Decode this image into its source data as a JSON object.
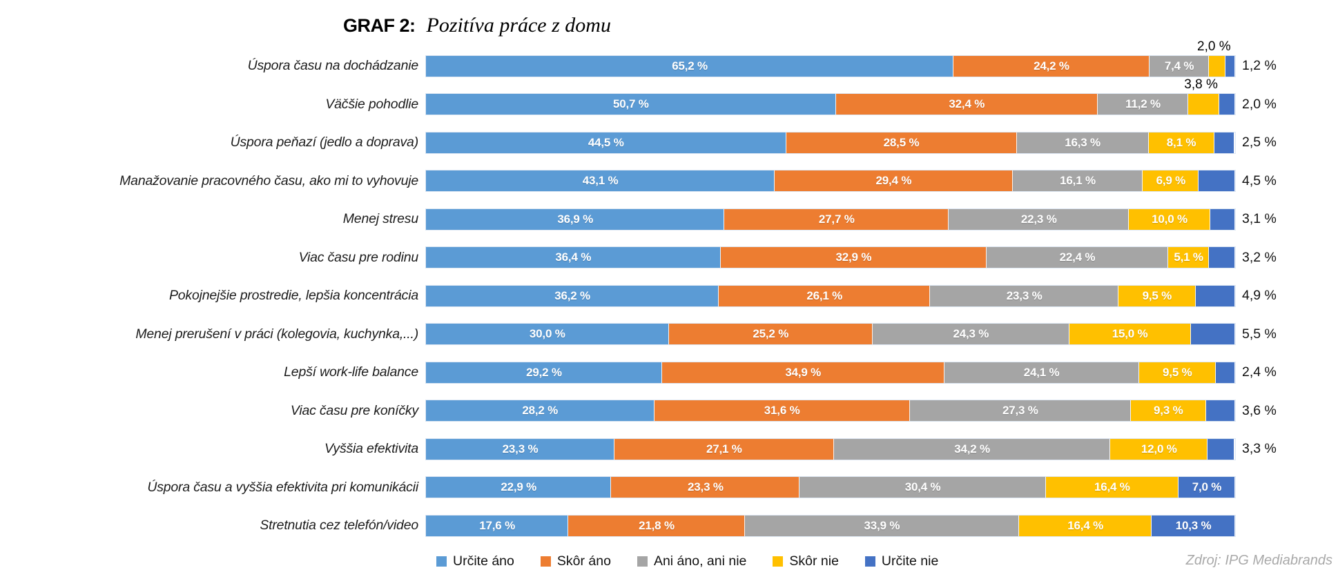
{
  "title": {
    "prefix": "GRAF 2:",
    "text": "Pozitíva práce z domu"
  },
  "source": "Zdroj: IPG Mediabrands",
  "colors": {
    "series": [
      "#5B9BD5",
      "#ED7D31",
      "#A5A5A5",
      "#FFC000",
      "#4472C4"
    ]
  },
  "legend": [
    "Určite áno",
    "Skôr áno",
    "Ani áno, ani nie",
    "Skôr nie",
    "Určite nie"
  ],
  "chart_data": {
    "type": "bar",
    "orientation": "horizontal-stacked",
    "unit": "%",
    "xlim": [
      0,
      100
    ],
    "grid": false,
    "legend_position": "bottom",
    "series_names": [
      "Určite áno",
      "Skôr áno",
      "Ani áno, ani nie",
      "Skôr nie",
      "Určite nie"
    ],
    "series_keys": [
      "urcite-ano",
      "skor-ano",
      "ani-ano-ani-nie",
      "skor-nie",
      "urcite-nie"
    ],
    "categories": [
      "Úspora času na dochádzanie",
      "Väčšie pohodlie",
      "Úspora peňazí (jedlo a doprava)",
      "Manažovanie pracovného času, ako mi to vyhovuje",
      "Menej stresu",
      "Viac času pre rodinu",
      "Pokojnejšie prostredie, lepšia koncentrácia",
      "Menej prerušení v práci (kolegovia, kuchynka,...)",
      "Lepší work-life balance",
      "Viac času pre koníčky",
      "Vyššia efektivita",
      "Úspora času a vyššia efektivita pri komunikácii",
      "Stretnutia cez telefón/video"
    ],
    "rows": [
      {
        "category": "Úspora času na dochádzanie",
        "values": [
          65.2,
          24.2,
          7.4,
          2.0,
          1.2
        ],
        "labels": [
          "65,2 %",
          "24,2 %",
          "7,4 %",
          "2,0 %",
          "1,2 %"
        ]
      },
      {
        "category": "Väčšie pohodlie",
        "values": [
          50.7,
          32.4,
          11.2,
          3.8,
          2.0
        ],
        "labels": [
          "50,7 %",
          "32,4 %",
          "11,2 %",
          "3,8 %",
          "2,0 %"
        ]
      },
      {
        "category": "Úspora peňazí (jedlo a doprava)",
        "values": [
          44.5,
          28.5,
          16.3,
          8.1,
          2.5
        ],
        "labels": [
          "44,5 %",
          "28,5 %",
          "16,3 %",
          "8,1 %",
          "2,5 %"
        ]
      },
      {
        "category": "Manažovanie pracovného času, ako mi to vyhovuje",
        "values": [
          43.1,
          29.4,
          16.1,
          6.9,
          4.5
        ],
        "labels": [
          "43,1 %",
          "29,4 %",
          "16,1 %",
          "6,9 %",
          "4,5 %"
        ]
      },
      {
        "category": "Menej stresu",
        "values": [
          36.9,
          27.7,
          22.3,
          10.0,
          3.1
        ],
        "labels": [
          "36,9 %",
          "27,7 %",
          "22,3 %",
          "10,0 %",
          "3,1 %"
        ]
      },
      {
        "category": "Viac času pre rodinu",
        "values": [
          36.4,
          32.9,
          22.4,
          5.1,
          3.2
        ],
        "labels": [
          "36,4 %",
          "32,9 %",
          "22,4 %",
          "5,1 %",
          "3,2 %"
        ]
      },
      {
        "category": "Pokojnejšie prostredie, lepšia koncentrácia",
        "values": [
          36.2,
          26.1,
          23.3,
          9.5,
          4.9
        ],
        "labels": [
          "36,2 %",
          "26,1 %",
          "23,3 %",
          "9,5 %",
          "4,9 %"
        ]
      },
      {
        "category": "Menej prerušení v práci (kolegovia, kuchynka,...)",
        "values": [
          30.0,
          25.2,
          24.3,
          15.0,
          5.5
        ],
        "labels": [
          "30,0 %",
          "25,2 %",
          "24,3 %",
          "15,0 %",
          "5,5 %"
        ]
      },
      {
        "category": "Lepší work-life balance",
        "values": [
          29.2,
          34.9,
          24.1,
          9.5,
          2.4
        ],
        "labels": [
          "29,2 %",
          "34,9 %",
          "24,1 %",
          "9,5 %",
          "2,4 %"
        ]
      },
      {
        "category": "Viac času pre koníčky",
        "values": [
          28.2,
          31.6,
          27.3,
          9.3,
          3.6
        ],
        "labels": [
          "28,2 %",
          "31,6 %",
          "27,3 %",
          "9,3 %",
          "3,6 %"
        ]
      },
      {
        "category": "Vyššia efektivita",
        "values": [
          23.3,
          27.1,
          34.2,
          12.0,
          3.3
        ],
        "labels": [
          "23,3 %",
          "27,1 %",
          "34,2 %",
          "12,0 %",
          "3,3 %"
        ]
      },
      {
        "category": "Úspora času a vyššia efektivita pri komunikácii",
        "values": [
          22.9,
          23.3,
          30.4,
          16.4,
          7.0
        ],
        "labels": [
          "22,9 %",
          "23,3 %",
          "30,4 %",
          "16,4 %",
          "7,0 %"
        ]
      },
      {
        "category": "Stretnutia cez telefón/video",
        "values": [
          17.6,
          21.8,
          33.9,
          16.4,
          10.3
        ],
        "labels": [
          "17,6 %",
          "21,8 %",
          "33,9 %",
          "16,4 %",
          "10,3 %"
        ]
      }
    ]
  }
}
